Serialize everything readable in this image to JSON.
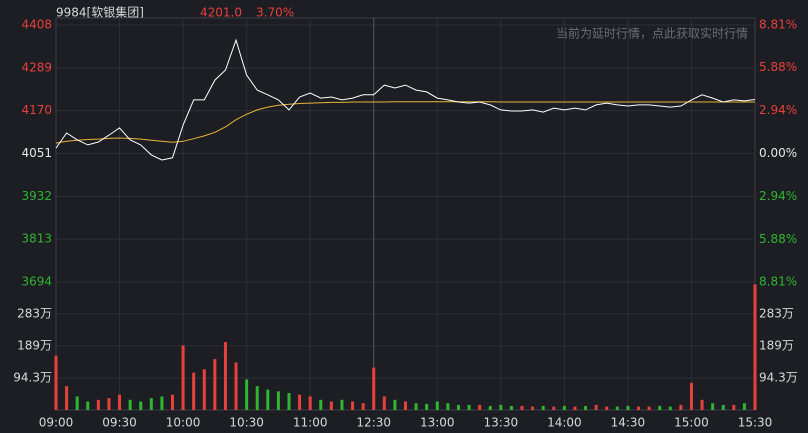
{
  "chart_data": {
    "type": "line",
    "title": "9984[软银集团]",
    "price_label": "4201.0",
    "change_label": "3.70%",
    "note": "当前为延时行情，点此获取实时行情",
    "up_color": "#e8403c",
    "down_color": "#2fb52f",
    "base_color": "#e6e6e6",
    "categories": [
      "09:00",
      null,
      null,
      null,
      null,
      null,
      "09:30",
      null,
      null,
      null,
      null,
      null,
      "10:00",
      null,
      null,
      null,
      null,
      null,
      "10:30",
      null,
      null,
      null,
      null,
      null,
      "11:00",
      null,
      null,
      null,
      null,
      null,
      "12:30",
      null,
      null,
      null,
      null,
      null,
      "13:00",
      null,
      null,
      null,
      null,
      null,
      "13:30",
      null,
      null,
      null,
      null,
      null,
      "14:00",
      null,
      null,
      null,
      null,
      null,
      "14:30",
      null,
      null,
      null,
      null,
      null,
      "15:00",
      null,
      null,
      null,
      null,
      null,
      "15:30"
    ],
    "series": [
      {
        "color": "#ffffff",
        "values": [
          4066,
          4108,
          4089,
          4075,
          4083,
          4102,
          4122,
          4089,
          4075,
          4047,
          4033,
          4039,
          4130,
          4200,
          4200,
          4255,
          4283,
          4366,
          4269,
          4227,
          4214,
          4200,
          4172,
          4208,
          4219,
          4205,
          4208,
          4200,
          4205,
          4214,
          4214,
          4241,
          4233,
          4241,
          4227,
          4222,
          4205,
          4200,
          4194,
          4191,
          4194,
          4186,
          4172,
          4169,
          4169,
          4172,
          4166,
          4177,
          4172,
          4177,
          4172,
          4186,
          4191,
          4186,
          4183,
          4186,
          4186,
          4183,
          4180,
          4183,
          4200,
          4214,
          4205,
          4194,
          4200,
          4197,
          4201
        ]
      },
      {
        "color": "#e8b53a",
        "values": [
          4080,
          4085,
          4088,
          4090,
          4091,
          4093,
          4094,
          4093,
          4091,
          4088,
          4085,
          4082,
          4085,
          4092,
          4100,
          4110,
          4125,
          4145,
          4160,
          4172,
          4180,
          4185,
          4188,
          4190,
          4191,
          4192,
          4193,
          4193,
          4194,
          4194,
          4194,
          4194,
          4195,
          4195,
          4195,
          4195,
          4195,
          4195,
          4195,
          4195,
          4195,
          4195,
          4194,
          4194,
          4194,
          4194,
          4194,
          4194,
          4194,
          4194,
          4194,
          4194,
          4194,
          4194,
          4194,
          4194,
          4194,
          4194,
          4194,
          4194,
          4194,
          4194,
          4194,
          4194,
          4194,
          4194,
          4194
        ]
      }
    ],
    "ylim": [
      3694,
      4408
    ],
    "yticks": [
      4408,
      4289,
      4170,
      4051,
      3932,
      3813,
      3694
    ],
    "y2lim": [
      -8.81,
      8.81
    ],
    "y2ticks": [
      {
        "value": 8.81,
        "label": "8.81%"
      },
      {
        "value": 5.88,
        "label": "5.88%"
      },
      {
        "value": 2.94,
        "label": "2.94%"
      },
      {
        "value": 0,
        "label": "0.00%"
      },
      {
        "value": -2.94,
        "label": "2.94%"
      },
      {
        "value": -5.88,
        "label": "5.88%"
      },
      {
        "value": -8.81,
        "label": "8.81%"
      }
    ],
    "grid": true,
    "volume": {
      "type": "bar",
      "values": [
        160,
        70,
        40,
        25,
        30,
        35,
        45,
        30,
        25,
        35,
        40,
        45,
        190,
        110,
        120,
        150,
        200,
        140,
        90,
        70,
        60,
        55,
        50,
        45,
        40,
        30,
        25,
        30,
        25,
        20,
        125,
        40,
        30,
        25,
        20,
        18,
        25,
        20,
        15,
        15,
        15,
        12,
        15,
        12,
        12,
        10,
        12,
        10,
        12,
        10,
        12,
        15,
        10,
        10,
        12,
        10,
        10,
        12,
        10,
        15,
        80,
        30,
        20,
        15,
        15,
        20,
        370
      ],
      "ylim": [
        0,
        377
      ],
      "yticks": [
        {
          "value": 283,
          "label": "283万"
        },
        {
          "value": 189,
          "label": "189万"
        },
        {
          "value": 94.3,
          "label": "94.3万"
        }
      ]
    }
  }
}
